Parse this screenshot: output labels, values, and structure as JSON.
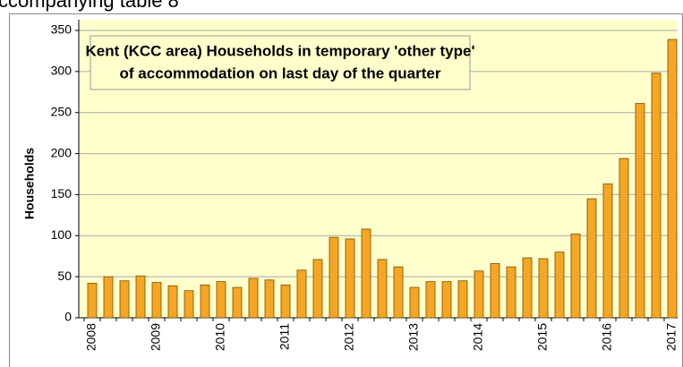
{
  "header": "ccompanying table 8",
  "chart_data": {
    "type": "bar",
    "title": [
      "Kent  (KCC area) Households in temporary 'other type'",
      "of accommodation on last day of the quarter"
    ],
    "y_label": "Households",
    "categories": [
      "2008",
      null,
      null,
      null,
      "2009",
      null,
      null,
      null,
      "2010",
      null,
      null,
      null,
      "2011",
      null,
      null,
      null,
      "2012",
      null,
      null,
      null,
      "2013",
      null,
      null,
      null,
      "2014",
      null,
      null,
      null,
      "2015",
      null,
      null,
      null,
      "2016",
      null,
      null,
      null,
      "2017"
    ],
    "values": [
      42,
      50,
      45,
      51,
      43,
      39,
      33,
      40,
      44,
      37,
      48,
      46,
      40,
      58,
      71,
      98,
      96,
      108,
      71,
      62,
      37,
      44,
      44,
      45,
      57,
      66,
      62,
      73,
      72,
      80,
      102,
      145,
      163,
      194,
      261,
      298,
      339
    ],
    "color": "#f5a623",
    "ylim": [
      0,
      350
    ],
    "yticks": [
      0,
      50,
      100,
      150,
      200,
      250,
      300,
      350
    ],
    "grid": true
  }
}
